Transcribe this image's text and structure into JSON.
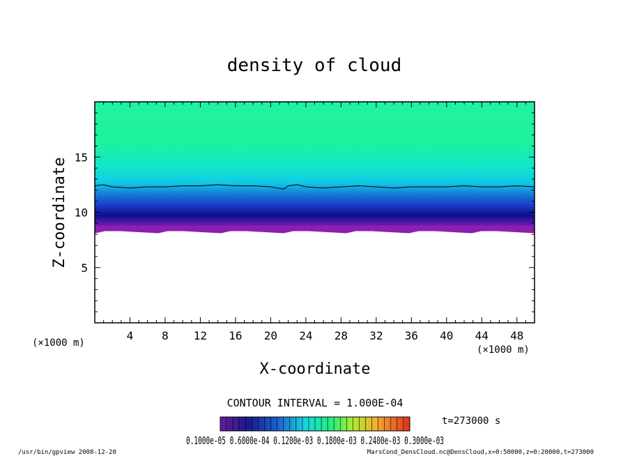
{
  "chart_data": {
    "type": "heatmap",
    "title": "density of cloud",
    "xlabel": "X-coordinate",
    "ylabel": "Z-coordinate",
    "x_unit": "(×1000 m)",
    "z_unit": "(×1000 m)",
    "xlim": [
      0,
      50
    ],
    "ylim": [
      0,
      20
    ],
    "x_ticks": [
      4,
      8,
      12,
      16,
      20,
      24,
      28,
      32,
      36,
      40,
      44,
      48
    ],
    "y_ticks": [
      5,
      10,
      15
    ],
    "contour_interval_text": "CONTOUR INTERVAL = 1.000E-04",
    "time_label": "t=273000 s",
    "colorbar_labels_text": "0.1000e-05 0.6000e-04 0.1200e-03 0.1800e-03 0.2400e-03 0.3000e-03",
    "contour_line_z": [
      [
        0,
        12.4
      ],
      [
        1,
        12.5
      ],
      [
        2,
        12.3
      ],
      [
        4,
        12.2
      ],
      [
        6,
        12.3
      ],
      [
        8,
        12.3
      ],
      [
        10,
        12.4
      ],
      [
        12,
        12.4
      ],
      [
        14,
        12.5
      ],
      [
        16,
        12.4
      ],
      [
        18,
        12.4
      ],
      [
        20,
        12.3
      ],
      [
        21.5,
        12.1
      ],
      [
        22,
        12.4
      ],
      [
        23,
        12.5
      ],
      [
        24,
        12.3
      ],
      [
        26,
        12.2
      ],
      [
        28,
        12.3
      ],
      [
        30,
        12.4
      ],
      [
        32,
        12.3
      ],
      [
        34,
        12.2
      ],
      [
        36,
        12.3
      ],
      [
        38,
        12.3
      ],
      [
        40,
        12.3
      ],
      [
        42,
        12.4
      ],
      [
        44,
        12.3
      ],
      [
        46,
        12.3
      ],
      [
        48,
        12.4
      ],
      [
        50,
        12.3
      ]
    ],
    "cloud_bottom_z": 8.3,
    "colors": {
      "upper": "#1cf59b",
      "mid_cyan": "#12d6e8",
      "deep_blue": "#1010a0",
      "base_purple": "#8b1fb0",
      "background": "#ffffff"
    }
  },
  "footer": {
    "left": "/usr/bin/gpview  2008-12-20",
    "right": "MarsCond_DensCloud.nc@DensCloud,x=0:50000,z=0:20000,t=273000"
  }
}
